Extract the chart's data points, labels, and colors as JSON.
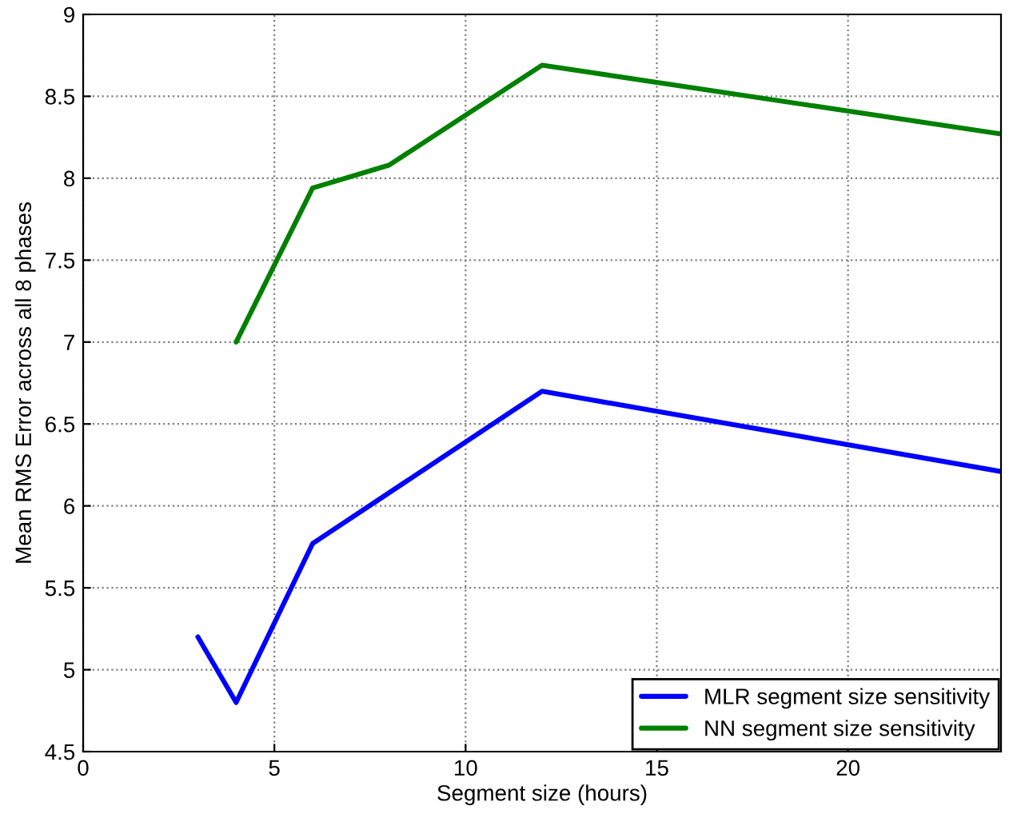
{
  "chart_data": {
    "type": "line",
    "xlabel": "Segment size (hours)",
    "ylabel": "Mean RMS Error across all 8 phases",
    "xlim": [
      0,
      24
    ],
    "xticks": [
      0,
      5,
      10,
      15,
      20
    ],
    "ylim": [
      4.5,
      9
    ],
    "yticks": [
      4.5,
      5,
      5.5,
      6,
      6.5,
      7,
      7.5,
      8,
      8.5,
      9
    ],
    "grid": true,
    "legend": "bottom right",
    "marker": "none",
    "line_style": "solid",
    "series": [
      {
        "name": "MLR segment size sensitivity",
        "color": "#0000ff",
        "x": [
          3,
          4,
          6,
          12,
          24
        ],
        "values": [
          5.2,
          4.8,
          5.77,
          6.7,
          6.21
        ]
      },
      {
        "name": "NN segment size sensitivity",
        "color": "#008000",
        "x": [
          4,
          6,
          8,
          12,
          24
        ],
        "values": [
          7.0,
          7.94,
          8.08,
          8.69,
          8.27
        ]
      }
    ]
  }
}
